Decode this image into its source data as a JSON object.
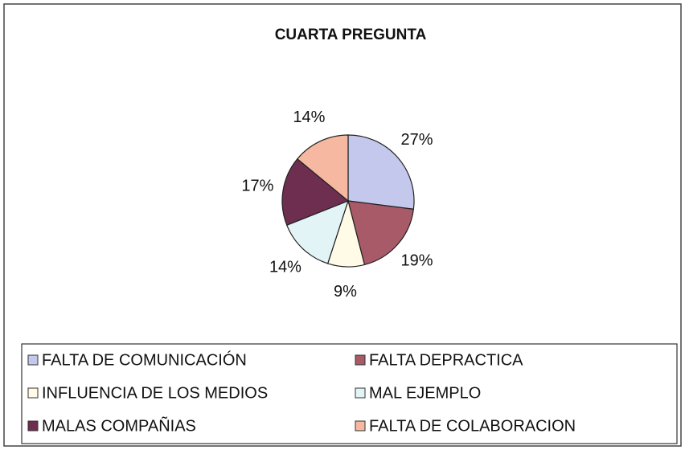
{
  "chart_data": {
    "type": "pie",
    "title": "CUARTA PREGUNTA",
    "categories": [
      "FALTA DE COMUNICACIÓN",
      "FALTA DEPRACTICA",
      "INFLUENCIA DE LOS MEDIOS",
      "MAL EJEMPLO",
      "MALAS COMPAÑIAS",
      "FALTA DE COLABORACION"
    ],
    "values": [
      27,
      19,
      9,
      14,
      17,
      14
    ],
    "value_labels": [
      "27%",
      "19%",
      "9%",
      "14%",
      "17%",
      "14%"
    ],
    "colors": [
      "#c4c8ec",
      "#a85a68",
      "#fffbe6",
      "#e2f4f6",
      "#6e2e50",
      "#f6b8a0"
    ],
    "legend": "bottom"
  }
}
